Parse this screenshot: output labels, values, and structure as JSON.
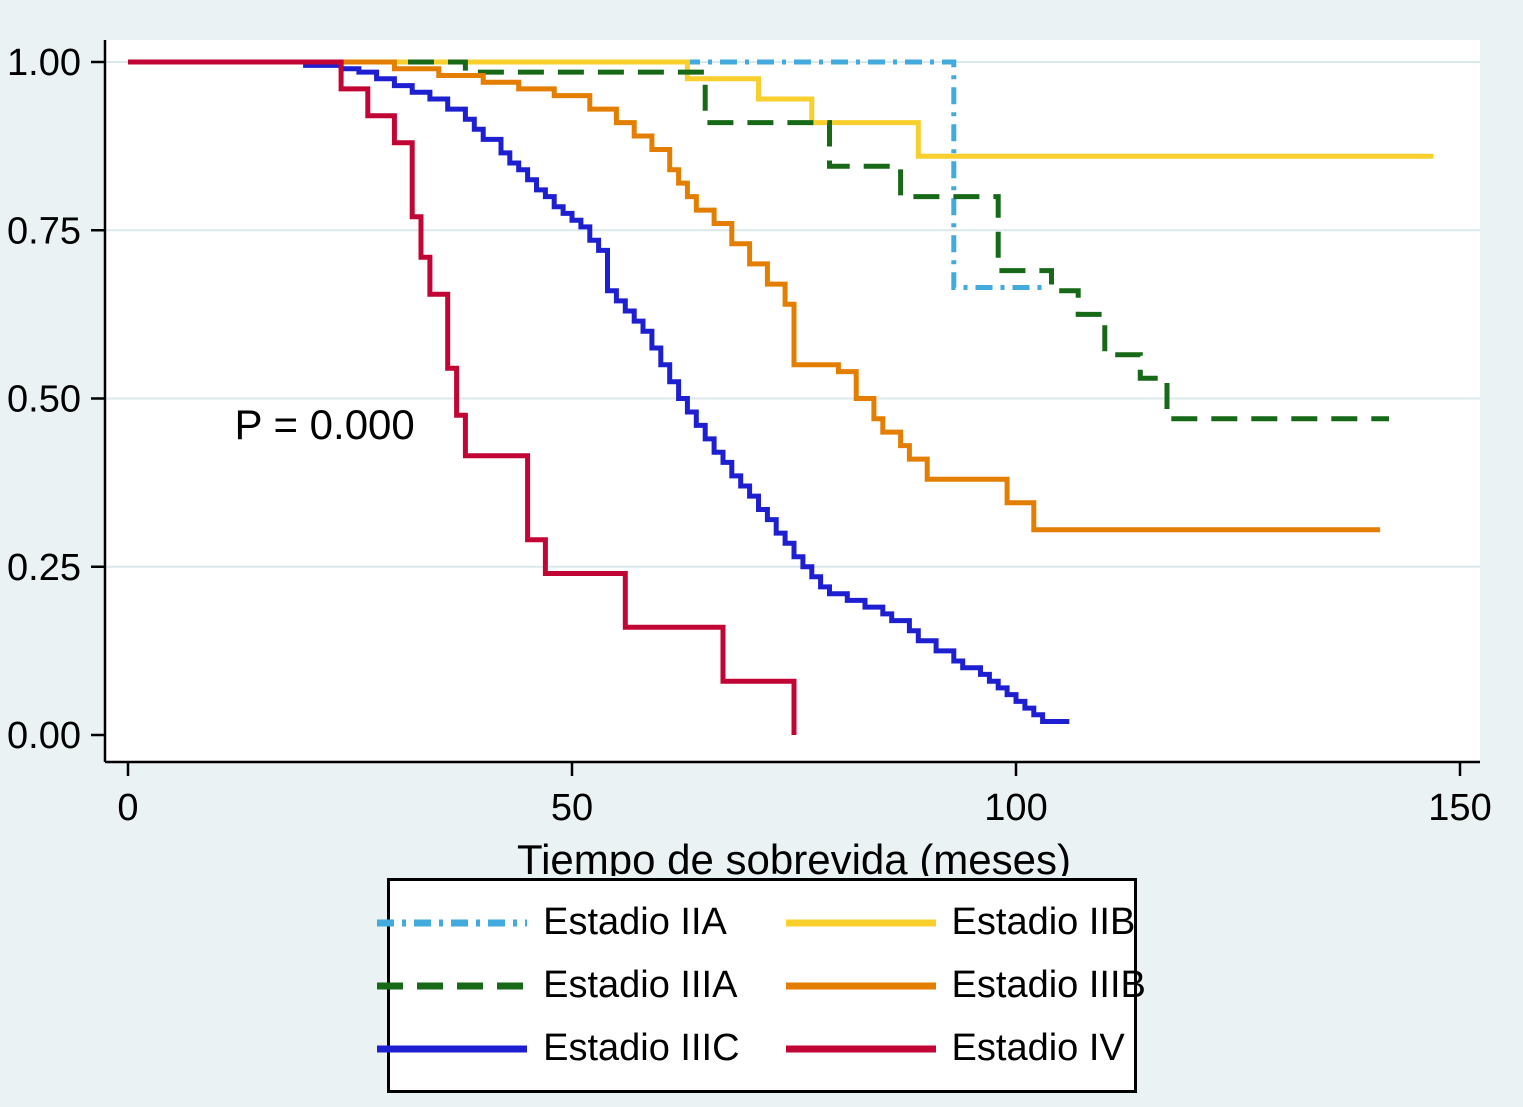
{
  "colors": {
    "background": "#eaf2f3",
    "plot_bg": "#ffffff",
    "grid": "#dce9ec",
    "axis": "#000000",
    "legend_bg": "#ffffff",
    "legend_border": "#000000"
  },
  "chart_data": {
    "type": "line",
    "subtype": "kaplan-meier-step",
    "title": "",
    "xlabel": "Tiempo de sobrevida (meses)",
    "ylabel": "",
    "xlim": [
      0,
      150
    ],
    "ylim": [
      0,
      1
    ],
    "xticks": [
      0,
      50,
      100,
      150
    ],
    "xtick_labels": [
      "0",
      "50",
      "100",
      "150"
    ],
    "ytick_values": [
      0,
      0.25,
      0.5,
      0.75,
      1
    ],
    "ytick_labels": [
      "0.00",
      "0.25",
      "0.50",
      "0.75",
      "1.00"
    ],
    "grid": true,
    "legend_position": "bottom",
    "annotation": {
      "text": "P = 0.000",
      "x": 12,
      "y": 0.44
    },
    "series": [
      {
        "name": "Estadio IIA",
        "color": "#42aadd",
        "dash": "dashdot",
        "points": [
          [
            0,
            1.0
          ],
          [
            93,
            0.665
          ],
          [
            103,
            0.665
          ]
        ]
      },
      {
        "name": "Estadio IIB",
        "color": "#f9cf2d",
        "dash": "solid",
        "points": [
          [
            0,
            1.0
          ],
          [
            63,
            0.975
          ],
          [
            71,
            0.945
          ],
          [
            77,
            0.91
          ],
          [
            89,
            0.86
          ],
          [
            147,
            0.86
          ]
        ]
      },
      {
        "name": "Estadio IIIA",
        "color": "#176917",
        "dash": "dash",
        "points": [
          [
            0,
            1.0
          ],
          [
            38,
            0.985
          ],
          [
            65,
            0.91
          ],
          [
            79,
            0.845
          ],
          [
            87,
            0.8
          ],
          [
            98,
            0.69
          ],
          [
            104,
            0.66
          ],
          [
            107,
            0.625
          ],
          [
            110,
            0.565
          ],
          [
            114,
            0.53
          ],
          [
            117,
            0.47
          ],
          [
            142,
            0.47
          ]
        ]
      },
      {
        "name": "Estadio IIIB",
        "color": "#e37e00",
        "dash": "solid",
        "points": [
          [
            0,
            1.0
          ],
          [
            30,
            0.99
          ],
          [
            35,
            0.98
          ],
          [
            40,
            0.97
          ],
          [
            44,
            0.96
          ],
          [
            48,
            0.95
          ],
          [
            52,
            0.93
          ],
          [
            55,
            0.91
          ],
          [
            57,
            0.89
          ],
          [
            59,
            0.87
          ],
          [
            61,
            0.84
          ],
          [
            62,
            0.82
          ],
          [
            63,
            0.8
          ],
          [
            64,
            0.78
          ],
          [
            66,
            0.76
          ],
          [
            68,
            0.73
          ],
          [
            70,
            0.7
          ],
          [
            72,
            0.67
          ],
          [
            74,
            0.64
          ],
          [
            75,
            0.55
          ],
          [
            80,
            0.54
          ],
          [
            82,
            0.5
          ],
          [
            84,
            0.47
          ],
          [
            85,
            0.45
          ],
          [
            87,
            0.43
          ],
          [
            88,
            0.41
          ],
          [
            90,
            0.38
          ],
          [
            99,
            0.345
          ],
          [
            102,
            0.305
          ],
          [
            141,
            0.305
          ]
        ]
      },
      {
        "name": "Estadio IIIC",
        "color": "#1f1fd2",
        "dash": "solid",
        "points": [
          [
            0,
            1.0
          ],
          [
            20,
            0.995
          ],
          [
            24,
            0.99
          ],
          [
            26,
            0.985
          ],
          [
            28,
            0.975
          ],
          [
            30,
            0.965
          ],
          [
            32,
            0.955
          ],
          [
            34,
            0.945
          ],
          [
            36,
            0.93
          ],
          [
            38,
            0.915
          ],
          [
            39,
            0.9
          ],
          [
            40,
            0.885
          ],
          [
            42,
            0.865
          ],
          [
            43,
            0.85
          ],
          [
            44,
            0.84
          ],
          [
            45,
            0.825
          ],
          [
            46,
            0.81
          ],
          [
            47,
            0.8
          ],
          [
            48,
            0.785
          ],
          [
            49,
            0.775
          ],
          [
            50,
            0.765
          ],
          [
            51,
            0.755
          ],
          [
            52,
            0.735
          ],
          [
            53,
            0.72
          ],
          [
            54,
            0.66
          ],
          [
            55,
            0.645
          ],
          [
            56,
            0.63
          ],
          [
            57,
            0.615
          ],
          [
            58,
            0.6
          ],
          [
            59,
            0.575
          ],
          [
            60,
            0.55
          ],
          [
            61,
            0.525
          ],
          [
            62,
            0.5
          ],
          [
            63,
            0.48
          ],
          [
            64,
            0.46
          ],
          [
            65,
            0.44
          ],
          [
            66,
            0.42
          ],
          [
            67,
            0.405
          ],
          [
            68,
            0.385
          ],
          [
            69,
            0.37
          ],
          [
            70,
            0.355
          ],
          [
            71,
            0.335
          ],
          [
            72,
            0.32
          ],
          [
            73,
            0.3
          ],
          [
            74,
            0.285
          ],
          [
            75,
            0.265
          ],
          [
            76,
            0.25
          ],
          [
            77,
            0.235
          ],
          [
            78,
            0.22
          ],
          [
            79,
            0.21
          ],
          [
            81,
            0.2
          ],
          [
            83,
            0.19
          ],
          [
            85,
            0.18
          ],
          [
            86,
            0.17
          ],
          [
            88,
            0.155
          ],
          [
            89,
            0.14
          ],
          [
            91,
            0.125
          ],
          [
            93,
            0.11
          ],
          [
            94,
            0.1
          ],
          [
            96,
            0.09
          ],
          [
            97,
            0.08
          ],
          [
            98,
            0.07
          ],
          [
            99,
            0.06
          ],
          [
            100,
            0.05
          ],
          [
            101,
            0.04
          ],
          [
            102,
            0.03
          ],
          [
            103,
            0.02
          ],
          [
            106,
            0.02
          ]
        ]
      },
      {
        "name": "Estadio IV",
        "color": "#c10534",
        "dash": "solid",
        "points": [
          [
            0,
            1.0
          ],
          [
            24,
            0.96
          ],
          [
            27,
            0.92
          ],
          [
            30,
            0.88
          ],
          [
            32,
            0.77
          ],
          [
            33,
            0.71
          ],
          [
            34,
            0.655
          ],
          [
            36,
            0.545
          ],
          [
            37,
            0.475
          ],
          [
            38,
            0.415
          ],
          [
            45,
            0.29
          ],
          [
            47,
            0.24
          ],
          [
            56,
            0.16
          ],
          [
            67,
            0.08
          ],
          [
            75,
            0.0
          ]
        ]
      }
    ]
  }
}
